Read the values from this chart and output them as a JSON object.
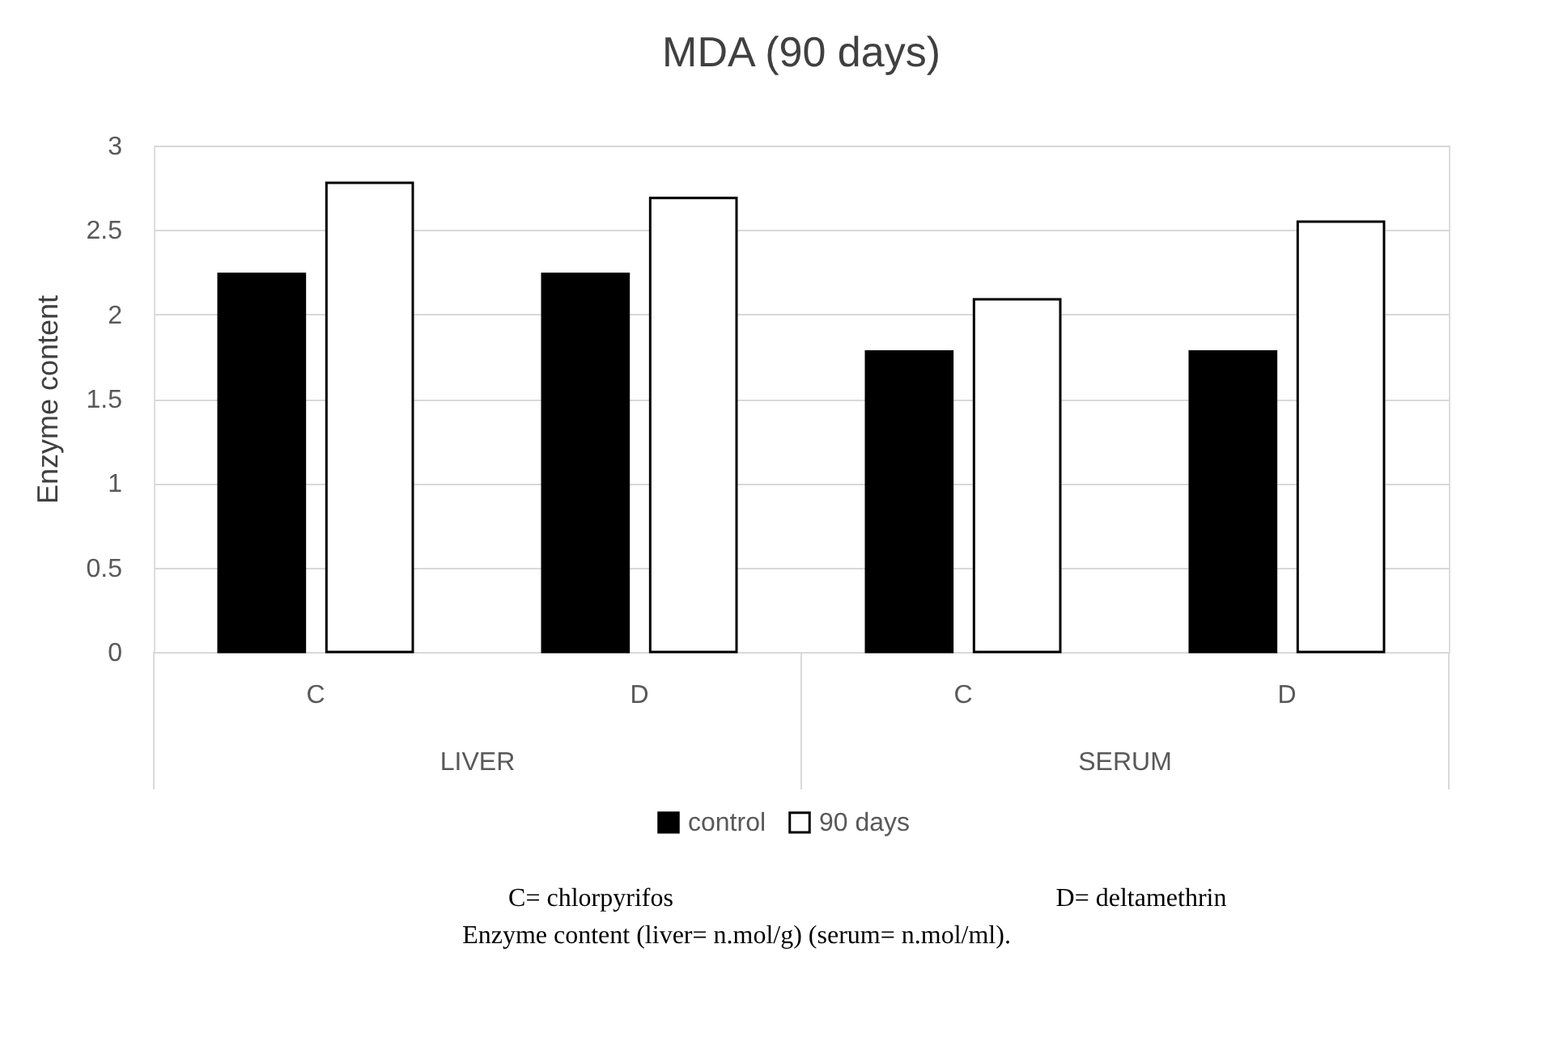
{
  "chart_data": {
    "type": "bar",
    "title": "MDA (90 days)",
    "ylabel": "Enzyme content",
    "categories": [
      "C",
      "D",
      "C",
      "D"
    ],
    "series": [
      {
        "name": "control",
        "color": "#000000",
        "values": [
          2.24,
          2.24,
          1.78,
          1.78
        ]
      },
      {
        "name": "90 days",
        "color": "#ffffff",
        "values": [
          2.78,
          2.69,
          2.09,
          2.55
        ]
      }
    ],
    "annotations": [
      "LIVER",
      "SERUM",
      "C= chlorpyrifos",
      "D= deltamethrin",
      "Enzyme content (liver= n.mol/g) (serum= n.mol/ml)."
    ],
    "ylim": [
      0,
      3
    ],
    "yticks": [
      {
        "value": 0,
        "label": "0"
      },
      0.5,
      {
        "value": 1,
        "label": "1"
      },
      1.5,
      {
        "value": 2,
        "label": "2"
      },
      2.5,
      {
        "value": 3,
        "label": "3"
      }
    ],
    "grid": "y",
    "legend": "bottom"
  }
}
